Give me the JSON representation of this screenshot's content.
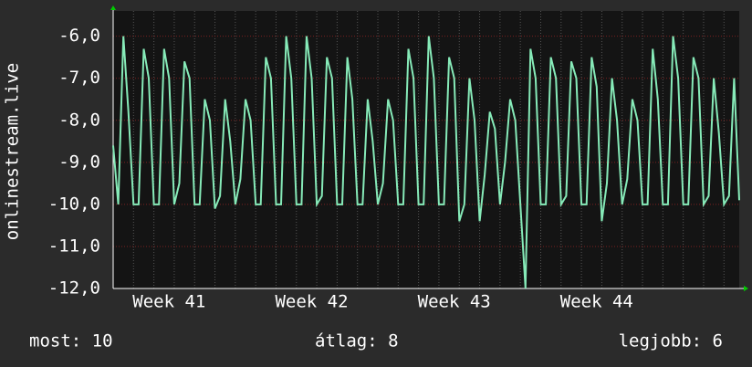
{
  "chart_data": {
    "type": "line",
    "ylabel": "onlinestream.live",
    "categories": [
      null,
      null,
      null,
      null,
      null,
      null,
      null,
      null,
      null,
      null,
      null,
      "Week 41",
      null,
      null,
      null,
      null,
      null,
      null,
      null,
      null,
      null,
      null,
      null,
      null,
      null,
      null,
      null,
      null,
      null,
      null,
      null,
      null,
      null,
      null,
      null,
      null,
      null,
      null,
      null,
      "Week 42",
      null,
      null,
      null,
      null,
      null,
      null,
      null,
      null,
      null,
      null,
      null,
      null,
      null,
      null,
      null,
      null,
      null,
      null,
      null,
      null,
      null,
      null,
      null,
      null,
      null,
      null,
      null,
      "Week 43",
      null,
      null,
      null,
      null,
      null,
      null,
      null,
      null,
      null,
      null,
      null,
      null,
      null,
      null,
      null,
      null,
      null,
      null,
      null,
      null,
      null,
      null,
      null,
      null,
      null,
      null,
      null,
      "Week 44",
      null,
      null,
      null,
      null,
      null,
      null,
      null,
      null,
      null,
      null,
      null,
      null,
      null,
      null,
      null,
      null,
      null,
      null,
      null,
      null,
      null,
      null,
      null,
      null,
      null,
      null,
      null,
      null
    ],
    "series": [
      {
        "color": "#86eab8",
        "values": [
          -8.6,
          -10,
          -6,
          -7.8,
          -10,
          -10,
          -6.3,
          -7,
          -10,
          -10,
          -6.3,
          -7,
          -10,
          -9.5,
          -6.6,
          -7,
          -10,
          -10,
          -7.5,
          -8,
          -10.1,
          -9.8,
          -7.5,
          -8.5,
          -10,
          -9.4,
          -7.5,
          -8,
          -10,
          -10,
          -6.5,
          -7,
          -10,
          -10,
          -6,
          -7,
          -10,
          -10,
          -6,
          -7,
          -10,
          -9.8,
          -6.5,
          -7,
          -10,
          -10,
          -6.5,
          -7.5,
          -10,
          -10,
          -7.5,
          -8.5,
          -10,
          -9.5,
          -7.5,
          -8,
          -10,
          -10,
          -6.3,
          -7,
          -10,
          -10,
          -6,
          -7,
          -10,
          -10,
          -6.5,
          -7,
          -10.4,
          -10,
          -7,
          -8,
          -10.4,
          -9.3,
          -7.8,
          -8.2,
          -10,
          -9,
          -7.5,
          -8,
          -10,
          -12,
          -6.3,
          -7,
          -10,
          -10,
          -6.5,
          -7,
          -10,
          -9.8,
          -6.6,
          -7,
          -10,
          -10,
          -6.5,
          -7.2,
          -10.4,
          -9.5,
          -7,
          -8,
          -10,
          -9.4,
          -7.5,
          -8,
          -10,
          -10,
          -6.3,
          -7.5,
          -10,
          -10,
          -6,
          -7,
          -10,
          -10,
          -6.5,
          -7,
          -10,
          -9.8,
          -7,
          -8.3,
          -10,
          -9.8,
          -7,
          -9.9
        ]
      }
    ],
    "ylim": [
      -12,
      -5.4
    ],
    "yticks": [
      {
        "value": -12,
        "label": "-12,0"
      },
      {
        "value": -11,
        "label": "-11,0"
      },
      {
        "value": -10,
        "label": "-10,0"
      },
      {
        "value": -9,
        "label": "-9,0"
      },
      {
        "value": -8,
        "label": "-8,0"
      },
      {
        "value": -7,
        "label": "-7,0"
      },
      {
        "value": -6,
        "label": "-6,0"
      }
    ],
    "grid": true
  },
  "footer": {
    "current": "most: 10",
    "average": "átlag: 8",
    "best": "legjobb: 6"
  }
}
